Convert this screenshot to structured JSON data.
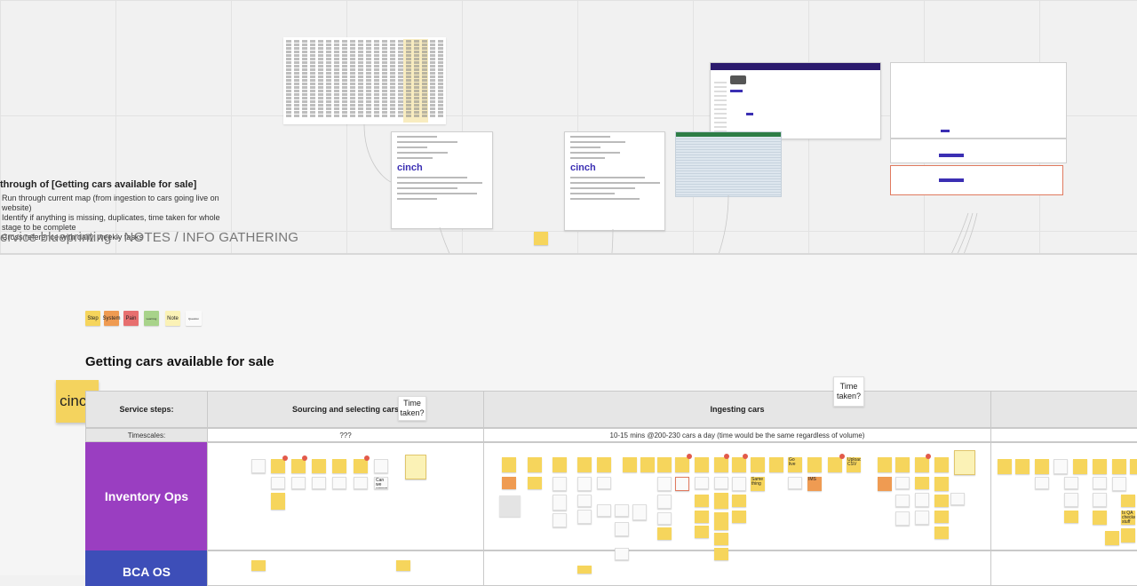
{
  "notes": {
    "heading": "through of [Getting cars available for sale]",
    "items": [
      "Run through current map (from ingestion to cars going live on website)",
      "Identify if anything is missing, duplicates, time taken for whole stage to be complete",
      "Cross reference with daily, weekly tasks"
    ],
    "frame_title": "ervice blueprinting - NOTES / INFO GATHERING"
  },
  "legend": {
    "items": [
      {
        "label": "Step",
        "color": "#f6d55c"
      },
      {
        "label": "System",
        "color": "#ef9b52"
      },
      {
        "label": "Pain",
        "color": "#e76f6f"
      },
      {
        "label": "Learning",
        "color": "#a8d38a"
      },
      {
        "label": "Note",
        "color": "#fbf2b6"
      },
      {
        "label": "Question",
        "color": "#fafafa"
      }
    ]
  },
  "section_title": "Getting cars available for sale",
  "brand_sticky": "cinch",
  "table": {
    "service_steps_label": "Service steps:",
    "timescales_label": "Timescales:",
    "stages": [
      {
        "name": "Sourcing and selecting cars",
        "timescale": "???"
      },
      {
        "name": "Ingesting cars",
        "timescale": "10-15 mins @200-230 cars a day (time would be the same regardless of volume)"
      }
    ],
    "lanes": [
      {
        "name": "Inventory Ops",
        "color": "#9a3ec1"
      },
      {
        "name": "BCA OS",
        "color": "#3d4eb8"
      }
    ]
  },
  "time_notes": [
    {
      "text": "Time taken?"
    },
    {
      "text": "Time taken?"
    }
  ],
  "stickies": {
    "samples": [
      "Go live",
      "IMS",
      "Upload CSV",
      "Same thing",
      "Can we export",
      "Use FFA",
      "Is QA checked stuff",
      "Quick eyeball",
      "Cause of issue",
      "Cross referencing"
    ]
  },
  "email_brand": "cinch"
}
